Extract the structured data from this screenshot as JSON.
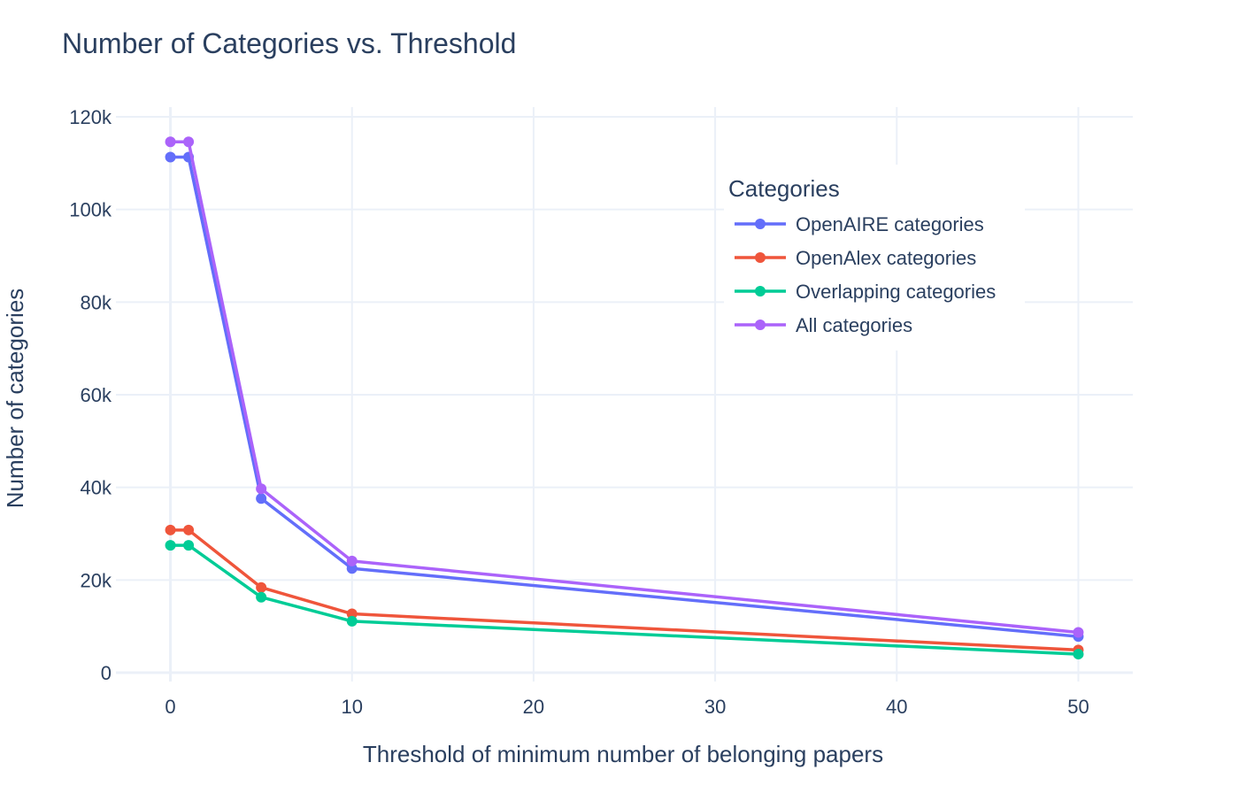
{
  "chart_data": {
    "type": "line",
    "title": "Number of Categories vs. Threshold",
    "xlabel": "Threshold of minimum number of belonging papers",
    "ylabel": "Number of categories",
    "x": [
      0,
      1,
      5,
      10,
      50
    ],
    "xlim": [
      -3,
      53
    ],
    "ylim": [
      0,
      120000
    ],
    "xticks": [
      0,
      10,
      20,
      30,
      40,
      50
    ],
    "xtick_labels": [
      "0",
      "10",
      "20",
      "30",
      "40",
      "50"
    ],
    "yticks": [
      0,
      20000,
      40000,
      60000,
      80000,
      100000,
      120000
    ],
    "ytick_labels": [
      "0",
      "20k",
      "40k",
      "60k",
      "80k",
      "100k",
      "120k"
    ],
    "grid": true,
    "legend": {
      "title": "Categories",
      "placement": "top-right"
    },
    "series": [
      {
        "name": "OpenAIRE categories",
        "color": "#636efa",
        "values": [
          111300,
          111300,
          37600,
          22500,
          7800
        ]
      },
      {
        "name": "OpenAlex categories",
        "color": "#ef553b",
        "values": [
          30800,
          30800,
          18400,
          12700,
          4900
        ]
      },
      {
        "name": "Overlapping categories",
        "color": "#00cc96",
        "values": [
          27500,
          27500,
          16300,
          11100,
          4000
        ]
      },
      {
        "name": "All categories",
        "color": "#ab63fa",
        "values": [
          114600,
          114600,
          39700,
          24100,
          8700
        ]
      }
    ]
  }
}
